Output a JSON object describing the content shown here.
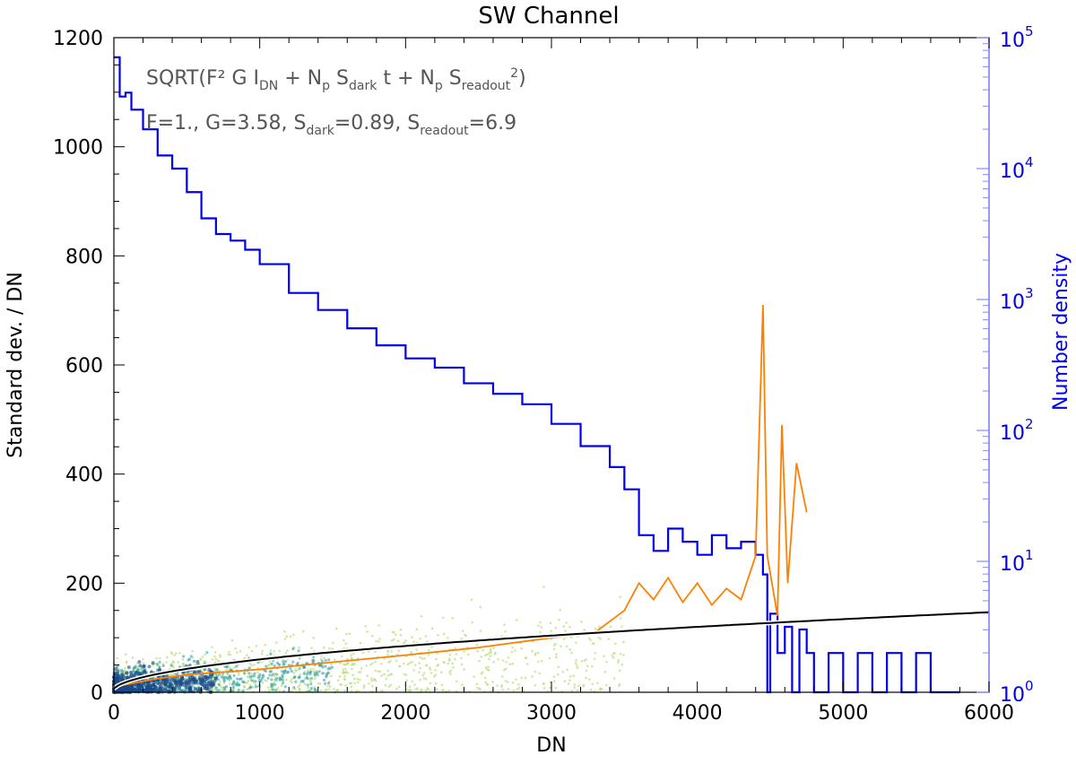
{
  "chart_data": {
    "type": "scatter",
    "title": "SW Channel",
    "xlabel": "DN",
    "ylabel": "Standard dev. / DN",
    "y2label": "Number density",
    "xlim": [
      0,
      6000
    ],
    "ylim": [
      0,
      1200
    ],
    "y2lim_log10": [
      0,
      5
    ],
    "x_ticks": [
      "0",
      "1000",
      "2000",
      "3000",
      "4000",
      "5000",
      "6000"
    ],
    "y_ticks": [
      "0",
      "200",
      "400",
      "600",
      "800",
      "1000",
      "1200"
    ],
    "y2_ticks": [
      {
        "base": "10",
        "exp": "0"
      },
      {
        "base": "10",
        "exp": "1"
      },
      {
        "base": "10",
        "exp": "2"
      },
      {
        "base": "10",
        "exp": "3"
      },
      {
        "base": "10",
        "exp": "4"
      },
      {
        "base": "10",
        "exp": "5"
      }
    ],
    "annotations": {
      "formula": {
        "prefix": "SQRT(F² G I",
        "sub1": "DN",
        "mid1": " + N",
        "sub2": "p",
        "mid2": " S",
        "sub3": "dark",
        "mid3": " t + N",
        "sub4": "p",
        "mid4": " S",
        "sub5": "readout",
        "sup": "2",
        "suffix": ")"
      },
      "params": {
        "p1": "F=1., G=3.58, S",
        "sub1": "dark",
        "p2": "=0.89, S",
        "sub2": "readout",
        "p3": "=6.9"
      }
    },
    "series": [
      {
        "name": "Number density histogram",
        "color": "#0000ee",
        "axis": "right-log",
        "points": [
          [
            0,
            4.85
          ],
          [
            40,
            4.55
          ],
          [
            80,
            4.58
          ],
          [
            120,
            4.45
          ],
          [
            200,
            4.3
          ],
          [
            300,
            4.1
          ],
          [
            400,
            4.0
          ],
          [
            500,
            3.82
          ],
          [
            600,
            3.62
          ],
          [
            700,
            3.5
          ],
          [
            800,
            3.45
          ],
          [
            900,
            3.38
          ],
          [
            1000,
            3.27
          ],
          [
            1200,
            3.05
          ],
          [
            1400,
            2.92
          ],
          [
            1600,
            2.78
          ],
          [
            1800,
            2.65
          ],
          [
            2000,
            2.55
          ],
          [
            2200,
            2.48
          ],
          [
            2400,
            2.36
          ],
          [
            2600,
            2.28
          ],
          [
            2800,
            2.2
          ],
          [
            3000,
            2.05
          ],
          [
            3200,
            1.88
          ],
          [
            3400,
            1.72
          ],
          [
            3500,
            1.55
          ],
          [
            3600,
            1.2
          ],
          [
            3700,
            1.08
          ],
          [
            3800,
            1.25
          ],
          [
            3900,
            1.15
          ],
          [
            4000,
            1.05
          ],
          [
            4100,
            1.2
          ],
          [
            4200,
            1.1
          ],
          [
            4300,
            1.15
          ],
          [
            4400,
            1.05
          ],
          [
            4450,
            0.9
          ],
          [
            4480,
            0.0
          ],
          [
            4500,
            0.6
          ],
          [
            4550,
            0.3
          ],
          [
            4600,
            0.5
          ],
          [
            4650,
            0.0
          ],
          [
            4700,
            0.48
          ],
          [
            4750,
            0.3
          ],
          [
            4800,
            0.0
          ],
          [
            4900,
            0.3
          ],
          [
            5000,
            0.0
          ],
          [
            5100,
            0.3
          ],
          [
            5200,
            0.0
          ],
          [
            5300,
            0.3
          ],
          [
            5400,
            0.0
          ],
          [
            5500,
            0.3
          ],
          [
            5600,
            0.0
          ],
          [
            5700,
            0.0
          ],
          [
            5800,
            0.0
          ]
        ]
      },
      {
        "name": "Binned standard deviation",
        "color": "#ff8000",
        "axis": "left",
        "points": [
          [
            0,
            10
          ],
          [
            100,
            15
          ],
          [
            200,
            20
          ],
          [
            300,
            25
          ],
          [
            500,
            32
          ],
          [
            1000,
            42
          ],
          [
            1500,
            55
          ],
          [
            2000,
            68
          ],
          [
            2500,
            82
          ],
          [
            3000,
            100
          ],
          [
            3300,
            110
          ],
          [
            3500,
            150
          ],
          [
            3600,
            200
          ],
          [
            3700,
            170
          ],
          [
            3800,
            210
          ],
          [
            3900,
            165
          ],
          [
            4000,
            200
          ],
          [
            4100,
            160
          ],
          [
            4200,
            190
          ],
          [
            4300,
            170
          ],
          [
            4400,
            250
          ],
          [
            4450,
            710
          ],
          [
            4480,
            250
          ],
          [
            4550,
            140
          ],
          [
            4580,
            490
          ],
          [
            4620,
            200
          ],
          [
            4680,
            420
          ],
          [
            4750,
            330
          ]
        ]
      },
      {
        "name": "Model SQRT curve",
        "color": "#000000",
        "axis": "left",
        "function": "sqrt(F^2*G*x + S_dark^2 + S_readout^2)",
        "params": {
          "F": 1.0,
          "G": 3.58,
          "S_dark": 0.89,
          "S_readout": 6.9
        }
      }
    ],
    "scatter_density": "2D point cloud of DN vs standard deviation, dense (dark blue) below 500 DN and 0-100, sparse (light green) elsewhere",
    "colors": {
      "frame": "#000000",
      "right_axis": "#0000ee",
      "right_axis_light": "#8888ff",
      "annotation_text": "#555555",
      "scatter_dense": "#1a4a8a",
      "scatter_mid": "#2a9aaa",
      "scatter_light": "#b6e07a"
    }
  }
}
